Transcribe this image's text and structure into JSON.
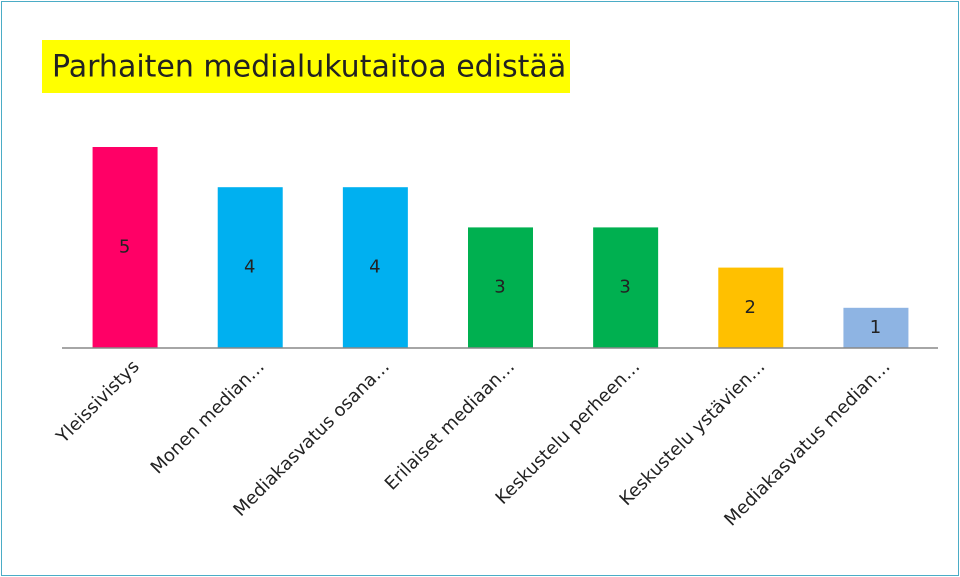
{
  "chart_data": {
    "type": "bar",
    "title": "Parhaiten medialukutaitoa edistää",
    "categories": [
      "Yleissivistys",
      "Monen median…",
      "Mediakasvatus osana…",
      "Erilaiset mediaan…",
      "Keskustelu perheen…",
      "Keskustelu ystävien…",
      "Mediakasvatus median…"
    ],
    "values": [
      5,
      4,
      4,
      3,
      3,
      2,
      1
    ],
    "colors": [
      "#ff0066",
      "#00b0f0",
      "#00b0f0",
      "#00b050",
      "#00b050",
      "#ffc000",
      "#8eb4e3"
    ],
    "ylim": [
      0,
      5
    ]
  }
}
